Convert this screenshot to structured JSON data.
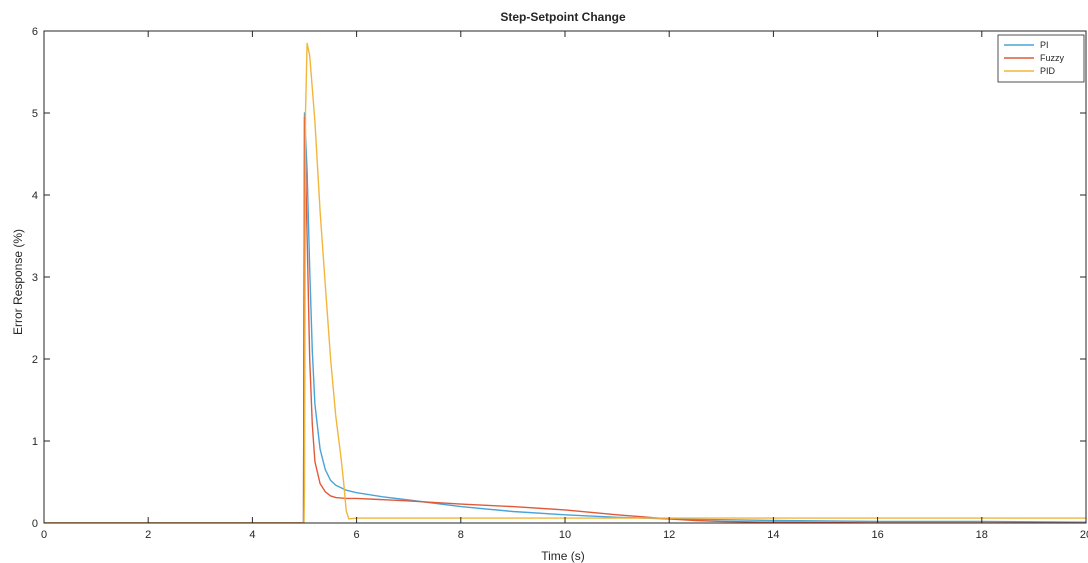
{
  "chart_data": {
    "type": "line",
    "title": "Step-Setpoint Change",
    "xlabel": "Time (s)",
    "ylabel": "Error Response (%)",
    "xlim": [
      0,
      20
    ],
    "ylim": [
      0,
      6
    ],
    "xticks": [
      0,
      2,
      4,
      6,
      8,
      10,
      12,
      14,
      16,
      18,
      20
    ],
    "yticks": [
      0,
      1,
      2,
      3,
      4,
      5,
      6
    ],
    "grid": false,
    "legend_position": "top-right",
    "series": [
      {
        "name": "PI",
        "color": "#4aa3d8",
        "x": [
          0,
          4.98,
          5.0,
          5.05,
          5.1,
          5.15,
          5.2,
          5.3,
          5.4,
          5.5,
          5.6,
          5.8,
          6.0,
          6.5,
          7.0,
          8.0,
          9.0,
          10.0,
          11.0,
          12.0,
          14.0,
          16.0,
          18.0,
          20.0
        ],
        "y": [
          0,
          0,
          5.0,
          4.3,
          3.1,
          2.1,
          1.45,
          0.9,
          0.65,
          0.52,
          0.46,
          0.4,
          0.37,
          0.32,
          0.28,
          0.2,
          0.14,
          0.1,
          0.07,
          0.05,
          0.03,
          0.02,
          0.02,
          0.01
        ]
      },
      {
        "name": "Fuzzy",
        "color": "#e05a3a",
        "x": [
          0,
          4.98,
          5.0,
          5.05,
          5.1,
          5.15,
          5.2,
          5.3,
          5.4,
          5.5,
          5.6,
          5.8,
          6.0,
          7.0,
          8.0,
          9.0,
          10.0,
          11.0,
          12.0,
          12.5,
          13.0,
          14.0,
          16.0,
          18.0,
          20.0
        ],
        "y": [
          0,
          0,
          4.95,
          3.5,
          2.0,
          1.2,
          0.75,
          0.48,
          0.38,
          0.33,
          0.31,
          0.3,
          0.3,
          0.27,
          0.23,
          0.2,
          0.16,
          0.1,
          0.05,
          0.03,
          0.02,
          0.01,
          0.0,
          0.0,
          0.0
        ]
      },
      {
        "name": "PID",
        "color": "#f2b63c",
        "x": [
          0,
          4.99,
          5.0,
          5.02,
          5.05,
          5.1,
          5.2,
          5.3,
          5.4,
          5.5,
          5.6,
          5.7,
          5.75,
          5.8,
          5.85,
          6.0,
          8.0,
          10.0,
          12.0,
          14.0,
          16.0,
          18.0,
          20.0
        ],
        "y": [
          0,
          0,
          0.4,
          5.0,
          5.85,
          5.7,
          4.9,
          3.8,
          2.9,
          2.0,
          1.3,
          0.8,
          0.5,
          0.15,
          0.05,
          0.06,
          0.06,
          0.06,
          0.06,
          0.06,
          0.06,
          0.06,
          0.06
        ]
      }
    ]
  }
}
